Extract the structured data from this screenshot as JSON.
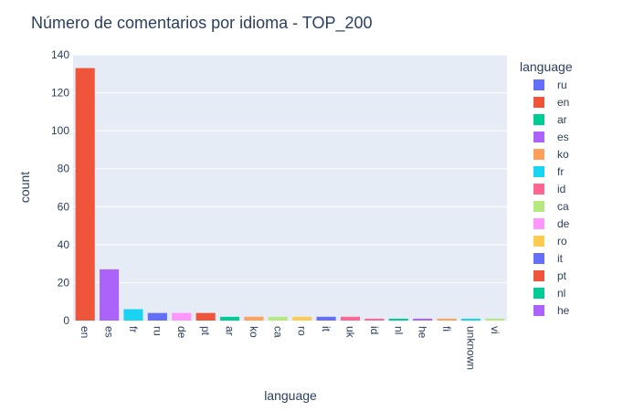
{
  "chart_data": {
    "type": "bar",
    "title": "Número de comentarios por idioma - TOP_200",
    "xlabel": "language",
    "ylabel": "count",
    "ylim": [
      0,
      140
    ],
    "yticks": [
      0,
      20,
      40,
      60,
      80,
      100,
      120,
      140
    ],
    "grid": true,
    "legend_title": "language",
    "legend_position": "right",
    "categories": [
      "en",
      "es",
      "fr",
      "ru",
      "de",
      "pt",
      "ar",
      "ko",
      "ca",
      "ro",
      "it",
      "uk",
      "id",
      "nl",
      "he",
      "fi",
      "unknown",
      "vi"
    ],
    "values": [
      133,
      27,
      6,
      4,
      4,
      4,
      2,
      2,
      2,
      2,
      2,
      2,
      1,
      1,
      1,
      1,
      1,
      1
    ],
    "bar_colors": [
      "#EF553B",
      "#AB63FA",
      "#19D3F3",
      "#636EFA",
      "#FF97FF",
      "#EF553B",
      "#00CC96",
      "#FFA15A",
      "#B6E880",
      "#FECB52",
      "#636EFA",
      "#FF6692",
      "#FF6692",
      "#00CC96",
      "#AB63FA",
      "#FFA15A",
      "#19D3F3",
      "#B6E880"
    ],
    "legend": [
      {
        "name": "ru",
        "color": "#636EFA"
      },
      {
        "name": "en",
        "color": "#EF553B"
      },
      {
        "name": "ar",
        "color": "#00CC96"
      },
      {
        "name": "es",
        "color": "#AB63FA"
      },
      {
        "name": "ko",
        "color": "#FFA15A"
      },
      {
        "name": "fr",
        "color": "#19D3F3"
      },
      {
        "name": "id",
        "color": "#FF6692"
      },
      {
        "name": "ca",
        "color": "#B6E880"
      },
      {
        "name": "de",
        "color": "#FF97FF"
      },
      {
        "name": "ro",
        "color": "#FECB52"
      },
      {
        "name": "it",
        "color": "#636EFA"
      },
      {
        "name": "pt",
        "color": "#EF553B"
      },
      {
        "name": "nl",
        "color": "#00CC96"
      },
      {
        "name": "he",
        "color": "#AB63FA"
      }
    ],
    "plot_bg": "#E5ECF6",
    "text_color": "#2a3f5f"
  }
}
